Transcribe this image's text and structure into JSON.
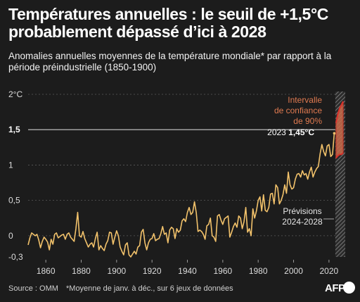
{
  "header": {
    "title": "Températures annuelles : le seuil de +1,5°C probablement dépassé d’ici à 2028",
    "subtitle": "Anomalies annuelles moyennes de la température mondiale* par rapport à la période préindustrielle (1850-1900)"
  },
  "footer": {
    "source": "Source : OMM",
    "note": "*Moyenne de janv. à déc., sur 6 jeux de données",
    "logo_text": "AFP"
  },
  "colors": {
    "background": "#1c1c1c",
    "line": "#f2c26b",
    "band": "#c0392b",
    "band_fill": "#c96a4a",
    "annotation_orange": "#e07a50",
    "threshold_line": "#cccccc"
  },
  "chart_data": {
    "type": "line",
    "xlim": [
      1850,
      2028
    ],
    "ylim": [
      -0.3,
      2
    ],
    "x_ticks": [
      {
        "value": 1860,
        "label": "1860"
      },
      {
        "value": 1880,
        "label": "1880"
      },
      {
        "value": 1900,
        "label": "1900"
      },
      {
        "value": 1920,
        "label": "1920"
      },
      {
        "value": 1940,
        "label": "1940"
      },
      {
        "value": 1960,
        "label": "1960"
      },
      {
        "value": 1980,
        "label": "1980"
      },
      {
        "value": 2000,
        "label": "2000"
      },
      {
        "value": 2020,
        "label": "2020"
      }
    ],
    "y_ticks": [
      {
        "value": 2,
        "label": "2°C"
      },
      {
        "value": 1.5,
        "label": "1,5"
      },
      {
        "value": 1,
        "label": "1"
      },
      {
        "value": 0.5,
        "label": "0,5"
      },
      {
        "value": 0,
        "label": "0"
      },
      {
        "value": -0.3,
        "label": "-0,3"
      }
    ],
    "threshold": 1.5,
    "x": [
      1850,
      1851,
      1852,
      1853,
      1854,
      1855,
      1856,
      1857,
      1858,
      1859,
      1860,
      1861,
      1862,
      1863,
      1864,
      1865,
      1866,
      1867,
      1868,
      1869,
      1870,
      1871,
      1872,
      1873,
      1874,
      1875,
      1876,
      1877,
      1878,
      1879,
      1880,
      1881,
      1882,
      1883,
      1884,
      1885,
      1886,
      1887,
      1888,
      1889,
      1890,
      1891,
      1892,
      1893,
      1894,
      1895,
      1896,
      1897,
      1898,
      1899,
      1900,
      1901,
      1902,
      1903,
      1904,
      1905,
      1906,
      1907,
      1908,
      1909,
      1910,
      1911,
      1912,
      1913,
      1914,
      1915,
      1916,
      1917,
      1918,
      1919,
      1920,
      1921,
      1922,
      1923,
      1924,
      1925,
      1926,
      1927,
      1928,
      1929,
      1930,
      1931,
      1932,
      1933,
      1934,
      1935,
      1936,
      1937,
      1938,
      1939,
      1940,
      1941,
      1942,
      1943,
      1944,
      1945,
      1946,
      1947,
      1948,
      1949,
      1950,
      1951,
      1952,
      1953,
      1954,
      1955,
      1956,
      1957,
      1958,
      1959,
      1960,
      1961,
      1962,
      1963,
      1964,
      1965,
      1966,
      1967,
      1968,
      1969,
      1970,
      1971,
      1972,
      1973,
      1974,
      1975,
      1976,
      1977,
      1978,
      1979,
      1980,
      1981,
      1982,
      1983,
      1984,
      1985,
      1986,
      1987,
      1988,
      1989,
      1990,
      1991,
      1992,
      1993,
      1994,
      1995,
      1996,
      1997,
      1998,
      1999,
      2000,
      2001,
      2002,
      2003,
      2004,
      2005,
      2006,
      2007,
      2008,
      2009,
      2010,
      2011,
      2012,
      2013,
      2014,
      2015,
      2016,
      2017,
      2018,
      2019,
      2020,
      2021,
      2022,
      2023
    ],
    "y": [
      -0.13,
      -0.03,
      0.04,
      0.02,
      0.0,
      0.02,
      -0.06,
      -0.17,
      -0.08,
      -0.02,
      -0.05,
      -0.09,
      -0.2,
      -0.05,
      -0.12,
      0.02,
      0.04,
      -0.03,
      -0.01,
      0.01,
      0.02,
      -0.05,
      0.02,
      0.04,
      -0.02,
      -0.05,
      -0.08,
      0.1,
      0.33,
      0.0,
      -0.02,
      0.06,
      -0.04,
      -0.1,
      -0.16,
      -0.12,
      -0.1,
      -0.16,
      -0.04,
      0.05,
      -0.2,
      -0.14,
      -0.18,
      -0.21,
      -0.12,
      -0.07,
      0.05,
      0.04,
      -0.12,
      -0.02,
      0.07,
      0.0,
      -0.16,
      -0.22,
      -0.27,
      -0.13,
      -0.1,
      -0.27,
      -0.3,
      -0.26,
      -0.22,
      -0.26,
      -0.16,
      -0.14,
      0.05,
      0.09,
      -0.1,
      -0.2,
      -0.1,
      -0.05,
      -0.04,
      0.03,
      -0.07,
      -0.05,
      -0.04,
      0.03,
      0.13,
      0.02,
      0.04,
      -0.1,
      0.08,
      0.12,
      0.1,
      -0.04,
      0.1,
      0.05,
      0.08,
      0.21,
      0.24,
      0.2,
      0.33,
      0.4,
      0.3,
      0.33,
      0.48,
      0.33,
      0.06,
      0.08,
      0.06,
      0.02,
      -0.05,
      0.14,
      0.16,
      0.25,
      0.0,
      -0.02,
      -0.08,
      0.28,
      0.3,
      0.22,
      0.16,
      0.24,
      0.26,
      0.28,
      -0.02,
      0.05,
      0.13,
      0.18,
      0.12,
      0.28,
      0.25,
      0.1,
      0.2,
      0.4,
      0.05,
      0.1,
      0.0,
      0.38,
      0.25,
      0.35,
      0.5,
      0.55,
      0.35,
      0.58,
      0.36,
      0.34,
      0.4,
      0.59,
      0.6,
      0.45,
      0.72,
      0.68,
      0.45,
      0.5,
      0.58,
      0.72,
      0.6,
      0.9,
      0.72,
      0.66,
      0.68,
      0.8,
      0.87,
      0.88,
      0.83,
      0.92,
      0.86,
      0.88,
      0.8,
      0.9,
      0.97,
      0.83,
      0.9,
      0.95,
      0.98,
      1.16,
      1.29,
      1.19,
      1.13,
      1.27,
      1.29,
      1.12,
      1.15,
      1.45
    ],
    "forecast": {
      "x_start": 2024,
      "x_end": 2028,
      "upper": [
        1.6,
        1.72,
        1.8,
        1.85,
        1.9
      ],
      "lower": [
        1.1,
        1.13,
        1.15,
        1.15,
        1.17
      ]
    },
    "annotations": {
      "confidence_label": [
        "Intervalle",
        "de confiance",
        "de 90%"
      ],
      "last_value_year": "2023",
      "last_value": "1,45°C",
      "forecast_label": [
        "Prévisions",
        "2024-2028"
      ]
    }
  }
}
